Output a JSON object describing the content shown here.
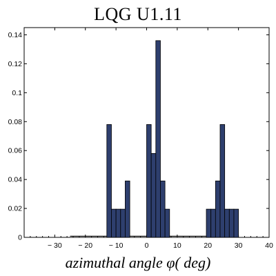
{
  "chart_data": {
    "type": "bar",
    "title": "LQG U1.11",
    "xlabel": "azimuthal angle φ( deg)",
    "ylabel": "",
    "xlim": [
      -40,
      40
    ],
    "ylim": [
      0,
      0.145
    ],
    "x_ticks": [
      -30,
      -20,
      -10,
      0,
      10,
      20,
      30,
      40
    ],
    "y_ticks": [
      0,
      0.02,
      0.04,
      0.06,
      0.08,
      0.1,
      0.12,
      0.14
    ],
    "x_tick_labels": [
      "− 30",
      "− 20",
      "− 10",
      "0",
      "10",
      "20",
      "30",
      "40"
    ],
    "y_tick_labels": [
      "0",
      "0.02",
      "0.04",
      "0.06",
      "0.08",
      "0.1",
      "0.12",
      "0.14"
    ],
    "bin_width": 1.5,
    "bars": [
      {
        "x0": -13,
        "value": 0.078
      },
      {
        "x0": -11.5,
        "value": 0.0195
      },
      {
        "x0": -10,
        "value": 0.0195
      },
      {
        "x0": -8.5,
        "value": 0.0195
      },
      {
        "x0": -7,
        "value": 0.039
      },
      {
        "x0": 0,
        "value": 0.078
      },
      {
        "x0": 1.5,
        "value": 0.058
      },
      {
        "x0": 3,
        "value": 0.136
      },
      {
        "x0": 4.5,
        "value": 0.039
      },
      {
        "x0": 6,
        "value": 0.0195
      },
      {
        "x0": 19.5,
        "value": 0.0195
      },
      {
        "x0": 21,
        "value": 0.0195
      },
      {
        "x0": 22.5,
        "value": 0.039
      },
      {
        "x0": 24,
        "value": 0.078
      },
      {
        "x0": 25.5,
        "value": 0.0195
      },
      {
        "x0": 27,
        "value": 0.0195
      },
      {
        "x0": 28.5,
        "value": 0.0195
      }
    ],
    "grid": false,
    "legend": "none",
    "bar_color": "#2e3f6e",
    "bar_edge_color": "#000000",
    "baseline_color": "#000000"
  }
}
